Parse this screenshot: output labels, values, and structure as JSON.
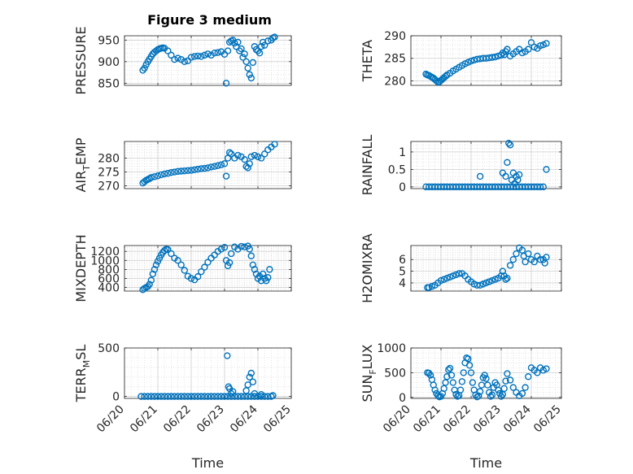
{
  "chart_data": [
    {
      "type": "scatter",
      "title": "Figure 3 medium",
      "ylabel": "PRESSURE",
      "xlabel": "",
      "xlim": [
        "06/20",
        "06/25"
      ],
      "xticks": [
        "06/20",
        "06/21",
        "06/22",
        "06/23",
        "06/24",
        "06/25"
      ],
      "ylim": [
        845,
        960
      ],
      "yticks": [
        850,
        900,
        950
      ],
      "grid": "on",
      "x": [
        0.55,
        0.6,
        0.65,
        0.7,
        0.75,
        0.8,
        0.85,
        0.9,
        0.95,
        1.0,
        1.05,
        1.1,
        1.15,
        1.2,
        1.3,
        1.4,
        1.5,
        1.6,
        1.7,
        1.8,
        1.9,
        2.0,
        2.1,
        2.2,
        2.3,
        2.4,
        2.5,
        2.6,
        2.7,
        2.8,
        2.9,
        3.0,
        3.05,
        3.1,
        3.15,
        3.2,
        3.25,
        3.3,
        3.35,
        3.4,
        3.45,
        3.5,
        3.55,
        3.6,
        3.65,
        3.7,
        3.75,
        3.8,
        3.85,
        3.9,
        3.95,
        4.0,
        4.05,
        4.1,
        4.15,
        4.2,
        4.3,
        4.4,
        4.45,
        4.5
      ],
      "y": [
        880,
        885,
        893,
        900,
        906,
        912,
        918,
        922,
        925,
        928,
        930,
        931,
        932,
        931,
        925,
        915,
        905,
        908,
        905,
        900,
        902,
        910,
        912,
        913,
        912,
        915,
        918,
        915,
        920,
        921,
        923,
        917,
        850,
        925,
        945,
        948,
        950,
        943,
        935,
        945,
        925,
        930,
        910,
        918,
        900,
        885,
        870,
        862,
        898,
        935,
        928,
        925,
        920,
        935,
        945,
        938,
        948,
        950,
        955,
        957
      ]
    },
    {
      "type": "scatter",
      "ylabel": "THETA",
      "xlabel": "",
      "xlim": [
        "06/20",
        "06/25"
      ],
      "xticks": [
        "06/20",
        "06/21",
        "06/22",
        "06/23",
        "06/24",
        "06/25"
      ],
      "ylim": [
        279,
        290
      ],
      "yticks": [
        280,
        285,
        290
      ],
      "grid": "on",
      "x": [
        0.5,
        0.55,
        0.6,
        0.65,
        0.7,
        0.75,
        0.8,
        0.85,
        0.9,
        0.95,
        1.0,
        1.05,
        1.1,
        1.15,
        1.2,
        1.3,
        1.4,
        1.5,
        1.6,
        1.7,
        1.8,
        1.9,
        2.0,
        2.1,
        2.2,
        2.3,
        2.4,
        2.5,
        2.6,
        2.7,
        2.8,
        2.9,
        3.0,
        3.05,
        3.1,
        3.15,
        3.2,
        3.3,
        3.4,
        3.5,
        3.6,
        3.7,
        3.8,
        3.9,
        4.0,
        4.1,
        4.2,
        4.3,
        4.4,
        4.5
      ],
      "y": [
        281.5,
        281.3,
        281.2,
        281.0,
        280.8,
        280.6,
        280.3,
        280.0,
        279.7,
        279.8,
        280.1,
        280.4,
        280.7,
        281.0,
        281.3,
        281.7,
        282.2,
        282.6,
        283.0,
        283.4,
        283.8,
        284.1,
        284.4,
        284.6,
        284.8,
        284.9,
        285.0,
        285.0,
        285.1,
        285.2,
        285.3,
        285.5,
        285.7,
        286.2,
        285.8,
        286.5,
        287.0,
        285.5,
        286.0,
        286.5,
        287.0,
        286.2,
        286.5,
        287.0,
        288.5,
        287.5,
        287.2,
        287.8,
        288.0,
        288.3
      ]
    },
    {
      "type": "scatter",
      "ylabel": "AIR_TEMP",
      "xlabel": "",
      "xlim": [
        "06/20",
        "06/25"
      ],
      "xticks": [
        "06/20",
        "06/21",
        "06/22",
        "06/23",
        "06/24",
        "06/25"
      ],
      "ylim": [
        269,
        286
      ],
      "yticks": [
        270,
        275,
        280
      ],
      "grid": "on",
      "x": [
        0.55,
        0.6,
        0.65,
        0.7,
        0.75,
        0.8,
        0.9,
        1.0,
        1.1,
        1.2,
        1.3,
        1.4,
        1.5,
        1.6,
        1.7,
        1.8,
        1.9,
        2.0,
        2.1,
        2.2,
        2.3,
        2.4,
        2.5,
        2.6,
        2.7,
        2.8,
        2.9,
        3.0,
        3.05,
        3.1,
        3.15,
        3.2,
        3.3,
        3.4,
        3.5,
        3.6,
        3.65,
        3.7,
        3.75,
        3.8,
        3.9,
        4.0,
        4.1,
        4.2,
        4.3,
        4.4,
        4.5
      ],
      "y": [
        271.0,
        271.5,
        272.0,
        272.3,
        272.6,
        273.0,
        273.3,
        273.6,
        274.0,
        274.3,
        274.5,
        274.8,
        275.0,
        275.2,
        275.3,
        275.4,
        275.5,
        275.6,
        275.8,
        276.0,
        276.2,
        276.3,
        276.5,
        276.8,
        277.0,
        277.3,
        277.6,
        278.0,
        273.5,
        280.0,
        282.0,
        281.5,
        280.0,
        281.0,
        280.5,
        279.5,
        277.0,
        276.5,
        278.0,
        280.5,
        281.0,
        280.5,
        280.0,
        281.5,
        283.0,
        284.0,
        285.0
      ]
    },
    {
      "type": "scatter",
      "ylabel": "RAINFALL",
      "xlabel": "",
      "xlim": [
        "06/20",
        "06/25"
      ],
      "xticks": [
        "06/20",
        "06/21",
        "06/22",
        "06/23",
        "06/24",
        "06/25"
      ],
      "ylim": [
        -0.05,
        1.3
      ],
      "yticks": [
        0,
        0.5,
        1
      ],
      "grid": "on",
      "x": [
        0.5,
        0.6,
        0.7,
        0.8,
        0.9,
        1.0,
        1.1,
        1.2,
        1.3,
        1.4,
        1.5,
        1.6,
        1.7,
        1.8,
        1.9,
        2.0,
        2.1,
        2.2,
        2.3,
        2.4,
        2.5,
        2.6,
        2.7,
        2.8,
        2.9,
        3.0,
        3.1,
        3.2,
        3.3,
        3.4,
        3.5,
        3.6,
        3.7,
        3.8,
        3.9,
        4.0,
        4.1,
        4.2,
        4.3,
        4.4,
        2.3,
        3.05,
        3.15,
        3.2,
        3.25,
        3.3,
        3.35,
        3.4,
        3.45,
        3.5,
        3.55,
        3.6,
        4.5
      ],
      "y": [
        0,
        0,
        0,
        0,
        0,
        0,
        0,
        0,
        0,
        0,
        0,
        0,
        0,
        0,
        0,
        0,
        0,
        0,
        0,
        0,
        0,
        0,
        0,
        0,
        0,
        0,
        0,
        0,
        0,
        0,
        0,
        0,
        0,
        0,
        0,
        0,
        0,
        0,
        0,
        0,
        0.3,
        0.4,
        0.3,
        0.7,
        1.25,
        1.2,
        0.2,
        0.4,
        0.1,
        0.3,
        0.2,
        0.35,
        0.5
      ]
    },
    {
      "type": "scatter",
      "ylabel": "MIXDEPTH",
      "xlabel": "",
      "xlim": [
        "06/20",
        "06/25"
      ],
      "xticks": [
        "06/20",
        "06/21",
        "06/22",
        "06/23",
        "06/24",
        "06/25"
      ],
      "ylim": [
        320,
        1330
      ],
      "yticks": [
        400,
        600,
        800,
        1000,
        1200
      ],
      "grid": "on",
      "x": [
        0.55,
        0.6,
        0.65,
        0.7,
        0.75,
        0.8,
        0.85,
        0.9,
        0.95,
        1.0,
        1.05,
        1.1,
        1.15,
        1.2,
        1.25,
        1.3,
        1.4,
        1.5,
        1.6,
        1.7,
        1.8,
        1.9,
        2.0,
        2.1,
        2.2,
        2.3,
        2.4,
        2.5,
        2.6,
        2.7,
        2.8,
        2.9,
        3.0,
        3.05,
        3.1,
        3.15,
        3.2,
        3.3,
        3.4,
        3.5,
        3.6,
        3.7,
        3.75,
        3.8,
        3.85,
        3.9,
        3.95,
        4.0,
        4.05,
        4.1,
        4.15,
        4.2,
        4.25,
        4.3,
        4.35
      ],
      "y": [
        350,
        380,
        400,
        420,
        470,
        560,
        700,
        800,
        900,
        980,
        1050,
        1120,
        1180,
        1220,
        1250,
        1240,
        1150,
        1050,
        1000,
        900,
        780,
        650,
        600,
        570,
        640,
        750,
        850,
        960,
        1050,
        1120,
        1200,
        1250,
        1290,
        1000,
        880,
        950,
        1150,
        1300,
        1250,
        1310,
        1300,
        1320,
        1250,
        1100,
        900,
        800,
        700,
        600,
        650,
        550,
        700,
        600,
        550,
        620,
        800
      ]
    },
    {
      "type": "scatter",
      "ylabel": "H2OMIXRA",
      "xlabel": "",
      "xlim": [
        "06/20",
        "06/25"
      ],
      "xticks": [
        "06/20",
        "06/21",
        "06/22",
        "06/23",
        "06/24",
        "06/25"
      ],
      "ylim": [
        3.3,
        7.2
      ],
      "yticks": [
        4,
        5,
        6
      ],
      "grid": "on",
      "x": [
        0.55,
        0.6,
        0.7,
        0.8,
        0.9,
        1.0,
        1.1,
        1.2,
        1.3,
        1.4,
        1.5,
        1.6,
        1.7,
        1.8,
        1.9,
        2.0,
        2.1,
        2.2,
        2.3,
        2.4,
        2.5,
        2.6,
        2.7,
        2.8,
        2.9,
        3.0,
        3.05,
        3.1,
        3.15,
        3.2,
        3.3,
        3.4,
        3.5,
        3.6,
        3.7,
        3.75,
        3.8,
        3.9,
        4.0,
        4.1,
        4.2,
        4.3,
        4.4,
        4.45,
        4.5
      ],
      "y": [
        3.6,
        3.6,
        3.7,
        3.8,
        4.0,
        4.2,
        4.3,
        4.4,
        4.5,
        4.6,
        4.7,
        4.8,
        4.8,
        4.6,
        4.3,
        4.1,
        3.9,
        3.8,
        3.8,
        3.9,
        4.0,
        4.1,
        4.2,
        4.3,
        4.4,
        4.6,
        5.0,
        4.6,
        4.3,
        4.4,
        5.5,
        6.0,
        6.5,
        7.0,
        6.8,
        6.3,
        5.8,
        6.5,
        6.0,
        5.8,
        6.3,
        6.0,
        6.0,
        5.7,
        6.2
      ]
    },
    {
      "type": "scatter",
      "ylabel": "TERR_MSL",
      "xlabel": "Time",
      "xlim": [
        "06/20",
        "06/25"
      ],
      "xticks": [
        "06/20",
        "06/21",
        "06/22",
        "06/23",
        "06/24",
        "06/25"
      ],
      "ylim": [
        -20,
        500
      ],
      "yticks": [
        0,
        500
      ],
      "grid": "on",
      "x": [
        0.5,
        0.6,
        0.7,
        0.8,
        0.9,
        1.0,
        1.1,
        1.2,
        1.3,
        1.4,
        1.5,
        1.6,
        1.7,
        1.8,
        1.9,
        2.0,
        2.1,
        2.2,
        2.3,
        2.4,
        2.5,
        2.6,
        2.7,
        2.8,
        2.9,
        3.0,
        3.1,
        3.2,
        3.3,
        3.4,
        3.5,
        3.6,
        3.7,
        3.8,
        3.9,
        4.0,
        4.1,
        4.2,
        4.3,
        4.4,
        3.08,
        3.12,
        3.15,
        3.2,
        3.25,
        3.65,
        3.7,
        3.75,
        3.8,
        3.85,
        3.9,
        4.1,
        4.45
      ],
      "y": [
        0,
        0,
        0,
        0,
        0,
        0,
        0,
        0,
        0,
        0,
        0,
        0,
        0,
        0,
        0,
        0,
        0,
        0,
        0,
        0,
        0,
        0,
        0,
        0,
        0,
        0,
        0,
        0,
        0,
        0,
        0,
        0,
        0,
        0,
        0,
        0,
        0,
        0,
        0,
        0,
        420,
        100,
        80,
        30,
        50,
        60,
        120,
        200,
        240,
        150,
        30,
        20,
        10
      ]
    },
    {
      "type": "scatter",
      "ylabel": "SUN_FLUX",
      "xlabel": "Time",
      "xlim": [
        "06/20",
        "06/25"
      ],
      "xticks": [
        "06/20",
        "06/21",
        "06/22",
        "06/23",
        "06/24",
        "06/25"
      ],
      "ylim": [
        -20,
        1000
      ],
      "yticks": [
        0,
        500,
        1000
      ],
      "grid": "on",
      "x": [
        0.55,
        0.6,
        0.65,
        0.7,
        0.75,
        0.8,
        0.85,
        0.9,
        0.95,
        1.0,
        1.05,
        1.1,
        1.15,
        1.2,
        1.25,
        1.3,
        1.35,
        1.4,
        1.45,
        1.5,
        1.55,
        1.6,
        1.65,
        1.7,
        1.75,
        1.8,
        1.85,
        1.9,
        1.95,
        2.0,
        2.05,
        2.1,
        2.15,
        2.2,
        2.25,
        2.3,
        2.35,
        2.4,
        2.45,
        2.5,
        2.55,
        2.6,
        2.65,
        2.7,
        2.75,
        2.8,
        2.85,
        2.9,
        2.95,
        3.0,
        3.05,
        3.1,
        3.15,
        3.2,
        3.3,
        3.4,
        3.5,
        3.6,
        3.7,
        3.8,
        3.9,
        4.0,
        4.1,
        4.2,
        4.3,
        4.4,
        4.5
      ],
      "y": [
        500,
        490,
        450,
        360,
        250,
        150,
        80,
        30,
        10,
        20,
        80,
        180,
        300,
        420,
        560,
        590,
        450,
        300,
        150,
        60,
        20,
        40,
        150,
        320,
        500,
        700,
        800,
        780,
        650,
        500,
        300,
        150,
        50,
        10,
        30,
        120,
        250,
        400,
        450,
        380,
        250,
        100,
        20,
        50,
        200,
        300,
        250,
        150,
        80,
        20,
        60,
        180,
        330,
        480,
        350,
        200,
        100,
        30,
        80,
        200,
        420,
        600,
        550,
        500,
        600,
        550,
        580
      ]
    }
  ]
}
